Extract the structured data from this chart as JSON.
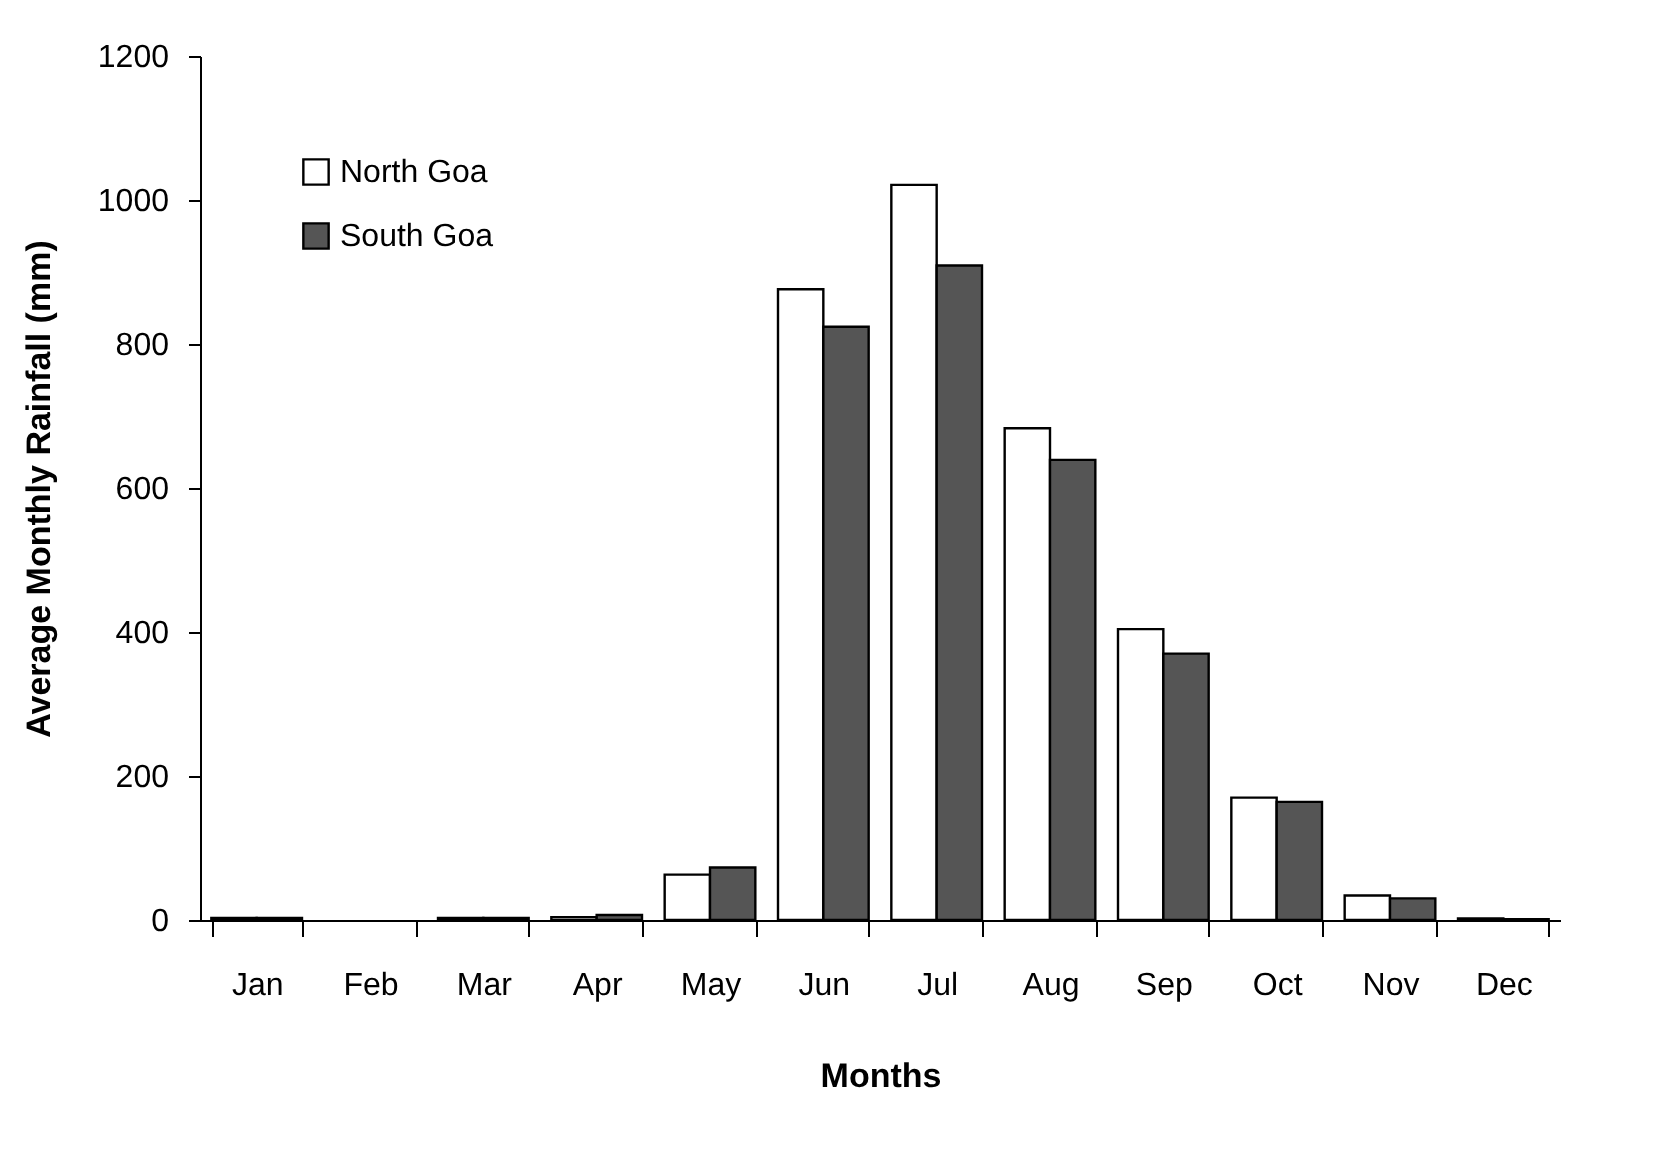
{
  "chart_data": {
    "type": "bar",
    "xlabel": "Months",
    "ylabel": "Average Monthly Rainfall (mm)",
    "categories": [
      "Jan",
      "Feb",
      "Mar",
      "Apr",
      "May",
      "Jun",
      "Jul",
      "Aug",
      "Sep",
      "Oct",
      "Nov",
      "Dec"
    ],
    "series": [
      {
        "name": "North Goa",
        "color": "#ffffff",
        "values": [
          3,
          0,
          3,
          4,
          63,
          876,
          1021,
          683,
          404,
          170,
          34,
          2
        ]
      },
      {
        "name": "South Goa",
        "color": "#555555",
        "values": [
          3,
          0,
          3,
          7,
          73,
          824,
          909,
          639,
          370,
          164,
          30,
          1
        ]
      }
    ],
    "ylim": [
      0,
      1200
    ],
    "yticks": [
      0,
      200,
      400,
      600,
      800,
      1000,
      1200
    ],
    "grid": false,
    "legend": "top left"
  }
}
